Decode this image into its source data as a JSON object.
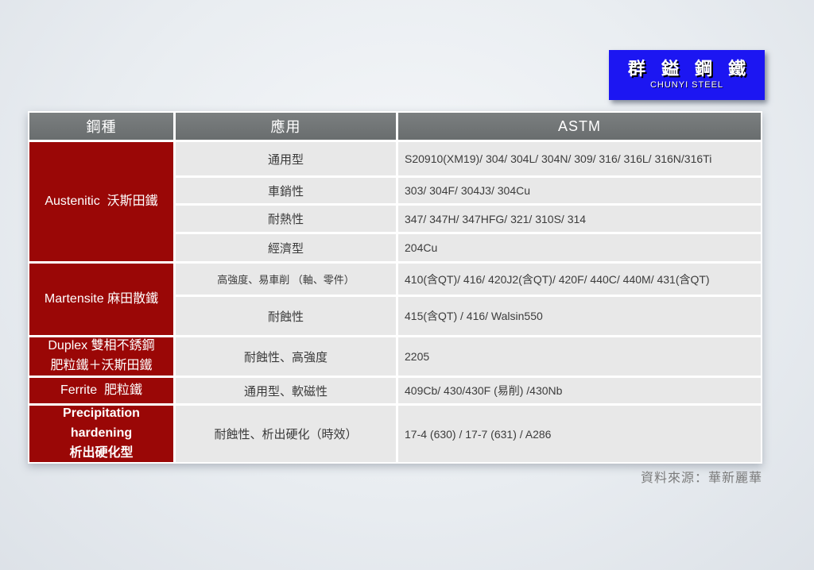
{
  "logo": {
    "title": "群 鎰 鋼 鐵",
    "subtitle": "CHUNYI STEEL"
  },
  "table": {
    "headers": [
      "鋼種",
      "應用",
      "ASTM"
    ],
    "groups": [
      {
        "type_lines": [
          "Austenitic  沃斯田鐵"
        ],
        "rows": [
          {
            "application": "通用型",
            "astm": "S20910(XM19)/ 304/ 304L/ 304N/ 309/ 316/ 316L/ 316N/316Ti"
          },
          {
            "application": "車銷性",
            "astm": "303/ 304F/ 304J3/ 304Cu"
          },
          {
            "application": "耐熱性",
            "astm": "347/ 347H/ 347HFG/ 321/ 310S/ 314"
          },
          {
            "application": "經濟型",
            "astm": "204Cu"
          }
        ]
      },
      {
        "type_lines": [
          "Martensite 麻田散鐵"
        ],
        "rows": [
          {
            "application": "高強度、易車削 （軸、零件）",
            "astm": "410(含QT)/ 416/ 420J2(含QT)/ 420F/ 440C/ 440M/ 431(含QT)"
          },
          {
            "application": "耐蝕性",
            "astm": "415(含QT) / 416/ Walsin550"
          }
        ]
      },
      {
        "type_lines": [
          "Duplex 雙相不銹鋼",
          "肥粒鐵＋沃斯田鐵"
        ],
        "rows": [
          {
            "application": "耐蝕性、高強度",
            "astm": "2205"
          }
        ]
      },
      {
        "type_lines": [
          "Ferrite  肥粒鐵"
        ],
        "rows": [
          {
            "application": "通用型、軟磁性",
            "astm": "409Cb/ 430/430F (易削) /430Nb"
          }
        ]
      },
      {
        "type_lines": [
          "Precipitation",
          "hardening",
          "析出硬化型"
        ],
        "rows": [
          {
            "application": "耐蝕性、析出硬化（時效）",
            "astm": "17-4 (630) / 17-7 (631) / A286"
          }
        ]
      }
    ]
  },
  "footer": {
    "source": "資料來源：華新麗華"
  },
  "colors": {
    "brand_blue": "#1c16f2",
    "group_red": "#9a0706",
    "header_gray": "#717576",
    "cell_gray": "#e8e8e8"
  }
}
